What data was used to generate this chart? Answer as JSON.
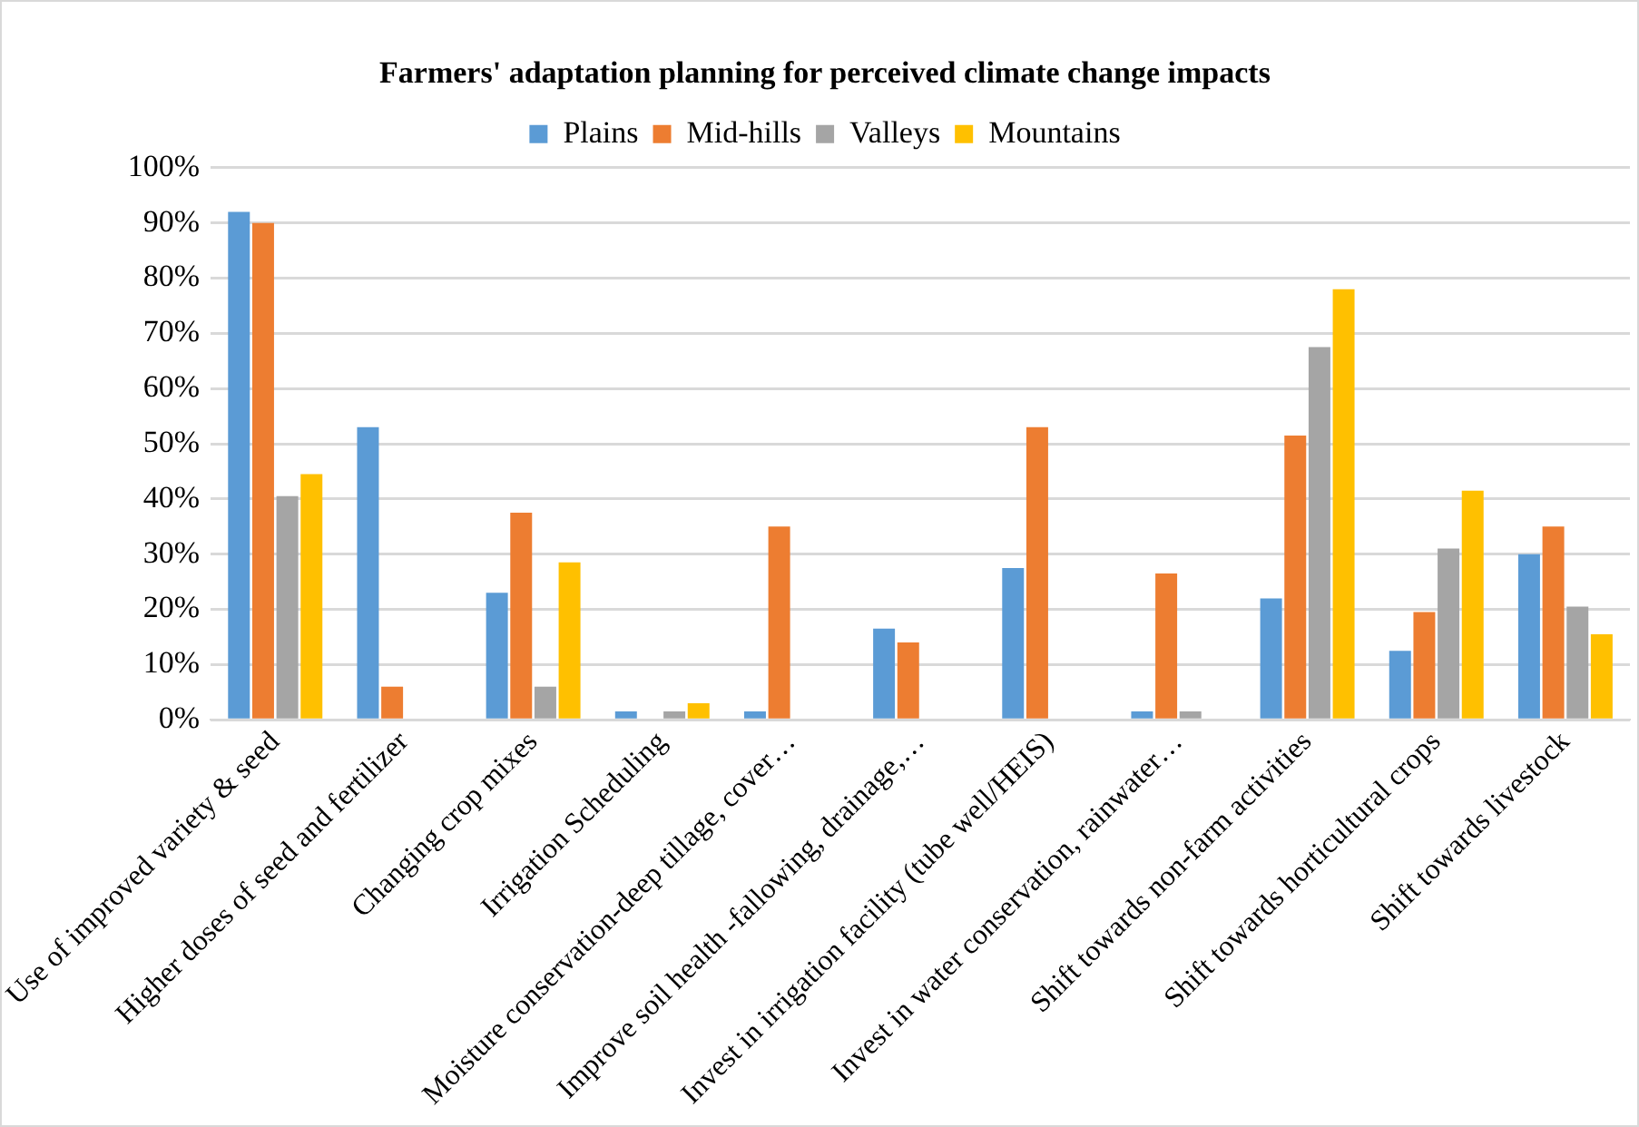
{
  "chart_data": {
    "type": "bar",
    "title": "Farmers' adaptation planning for perceived climate change impacts",
    "categories": [
      "Use of improved variety & seed",
      "Higher doses of seed and fertilizer",
      "Changing crop mixes",
      "Irrigation Scheduling",
      "Moisture conservation-deep tillage, cover…",
      "Improve soil health -fallowing, drainage,…",
      "Invest in irrigation facility (tube well/HEIS)",
      "Invest in water conservation, rainwater…",
      "Shift towards non-farm activities",
      "Shift towards horticultural crops",
      "Shift towards livestock"
    ],
    "series": [
      {
        "name": "Plains",
        "color": "#5b9bd5",
        "values": [
          92,
          53,
          23,
          1.5,
          1.5,
          16.5,
          27.5,
          1.5,
          22,
          12.5,
          30
        ]
      },
      {
        "name": "Mid-hills",
        "color": "#ed7d31",
        "values": [
          90,
          6,
          37.5,
          0,
          35,
          14,
          53,
          26.5,
          51.5,
          19.5,
          35
        ]
      },
      {
        "name": "Valleys",
        "color": "#a5a5a5",
        "values": [
          40.5,
          0,
          6,
          1.5,
          0,
          0,
          0,
          1.5,
          67.5,
          31,
          20.5
        ]
      },
      {
        "name": "Mountains",
        "color": "#ffc000",
        "values": [
          44.5,
          0,
          28.5,
          3,
          0,
          0,
          0,
          0,
          78,
          41.5,
          15.5
        ]
      }
    ],
    "ylim": [
      0,
      100
    ],
    "yticks": [
      {
        "value": 0,
        "label": "0%"
      },
      {
        "value": 10,
        "label": "10%"
      },
      {
        "value": 20,
        "label": "20%"
      },
      {
        "value": 30,
        "label": "30%"
      },
      {
        "value": 40,
        "label": "40%"
      },
      {
        "value": 50,
        "label": "50%"
      },
      {
        "value": 60,
        "label": "60%"
      },
      {
        "value": 70,
        "label": "70%"
      },
      {
        "value": 80,
        "label": "80%"
      },
      {
        "value": 90,
        "label": "90%"
      },
      {
        "value": 100,
        "label": "100%"
      }
    ],
    "grid": "y",
    "legend": "top"
  }
}
